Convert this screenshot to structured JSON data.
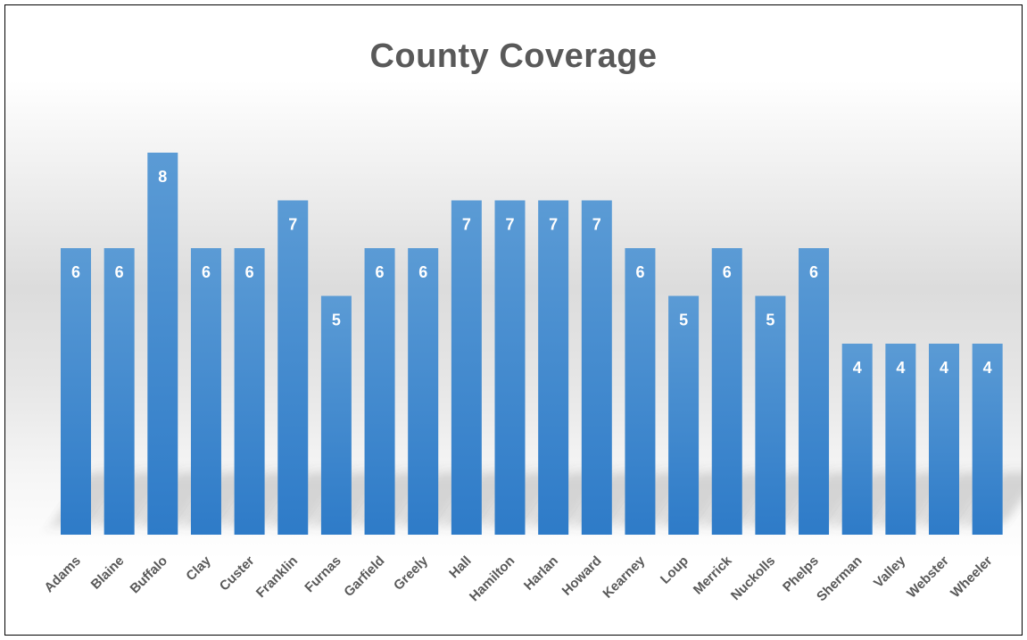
{
  "chart_data": {
    "type": "bar",
    "title": "County Coverage",
    "categories": [
      "Adams",
      "Blaine",
      "Buffalo",
      "Clay",
      "Custer",
      "Franklin",
      "Furnas",
      "Garfield",
      "Greely",
      "Hall",
      "Hamilton",
      "Harlan",
      "Howard",
      "Kearney",
      "Loup",
      "Merrick",
      "Nuckolls",
      "Phelps",
      "Sherman",
      "Valley",
      "Webster",
      "Wheeler"
    ],
    "values": [
      6,
      6,
      8,
      6,
      6,
      7,
      5,
      6,
      6,
      7,
      7,
      7,
      7,
      6,
      5,
      6,
      5,
      6,
      4,
      4,
      4,
      4
    ],
    "xlabel": "",
    "ylabel": "",
    "ylim": [
      0,
      8
    ],
    "grid": false,
    "legend": "none",
    "data_labels": "inside-end",
    "colors": {
      "bar_top": "#5b9bd5",
      "bar_bottom": "#2e7bc8",
      "data_label": "#ffffff",
      "tick_label": "#595959",
      "title": "#595959"
    }
  }
}
